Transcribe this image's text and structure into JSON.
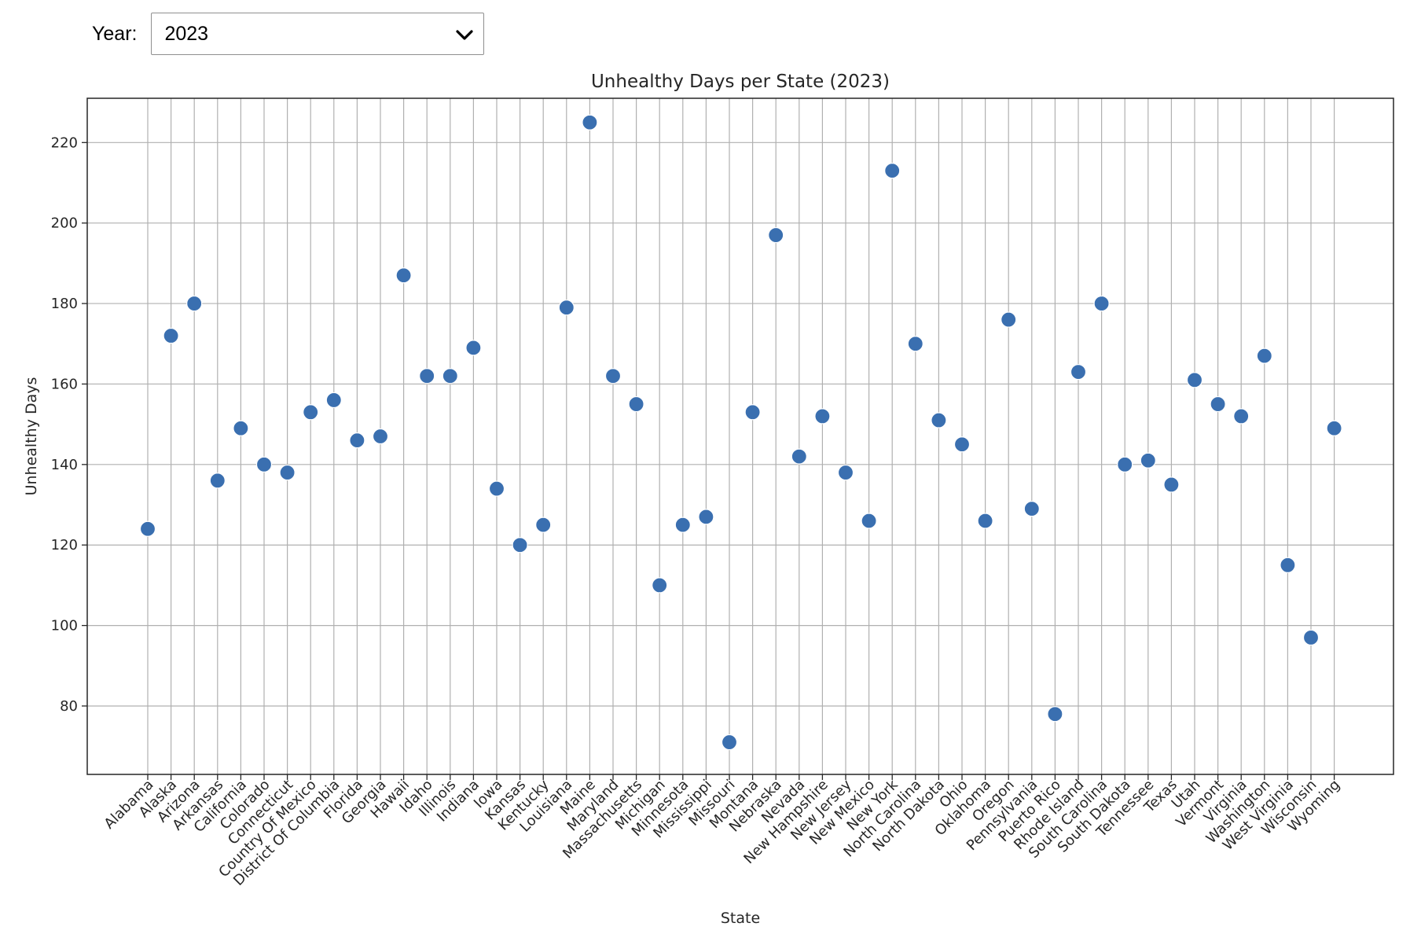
{
  "controls": {
    "year_label": "Year:",
    "year_selected": "2023"
  },
  "chart_data": {
    "type": "scatter",
    "title": "Unhealthy Days per State (2023)",
    "xlabel": "State",
    "ylabel": "Unhealthy Days",
    "ylim": [
      63,
      231
    ],
    "yticks": [
      80,
      100,
      120,
      140,
      160,
      180,
      200,
      220
    ],
    "grid": true,
    "marker_color": "#3a6fb0",
    "categories": [
      "Alabama",
      "Alaska",
      "Arizona",
      "Arkansas",
      "California",
      "Colorado",
      "Connecticut",
      "Country Of Mexico",
      "District Of Columbia",
      "Florida",
      "Georgia",
      "Hawaii",
      "Idaho",
      "Illinois",
      "Indiana",
      "Iowa",
      "Kansas",
      "Kentucky",
      "Louisiana",
      "Maine",
      "Maryland",
      "Massachusetts",
      "Michigan",
      "Minnesota",
      "Mississippi",
      "Missouri",
      "Montana",
      "Nebraska",
      "Nevada",
      "New Hampshire",
      "New Jersey",
      "New Mexico",
      "New York",
      "North Carolina",
      "North Dakota",
      "Ohio",
      "Oklahoma",
      "Oregon",
      "Pennsylvania",
      "Puerto Rico",
      "Rhode Island",
      "South Carolina",
      "South Dakota",
      "Tennessee",
      "Texas",
      "Utah",
      "Vermont",
      "Virginia",
      "Washington",
      "West Virginia",
      "Wisconsin",
      "Wyoming"
    ],
    "values": [
      124,
      172,
      180,
      136,
      149,
      140,
      138,
      153,
      156,
      146,
      147,
      187,
      162,
      162,
      169,
      134,
      120,
      125,
      179,
      225,
      162,
      155,
      110,
      125,
      127,
      71,
      153,
      197,
      142,
      152,
      138,
      126,
      213,
      170,
      151,
      145,
      126,
      176,
      129,
      78,
      163,
      180,
      140,
      141,
      135,
      161,
      155,
      152,
      167,
      115,
      97,
      149
    ]
  }
}
